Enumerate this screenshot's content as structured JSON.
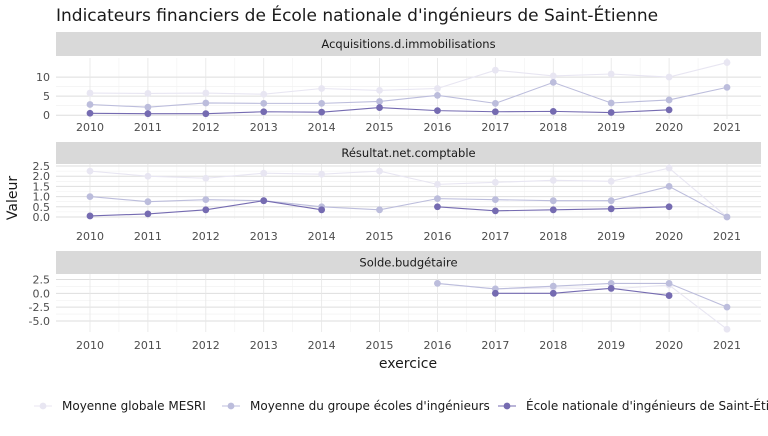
{
  "chart_data": {
    "type": "line",
    "title": "Indicateurs financiers de École nationale d'ingénieurs de Saint-Étienne",
    "xlabel": "exercice",
    "ylabel": "Valeur",
    "x": [
      "2010",
      "2011",
      "2012",
      "2013",
      "2014",
      "2015",
      "2016",
      "2017",
      "2018",
      "2019",
      "2020",
      "2021"
    ],
    "series_names": [
      "Moyenne globale MESRI",
      "Moyenne du groupe écoles d'ingénieurs",
      "École nationale d'ingénieurs de Saint-Étienne"
    ],
    "colors": [
      "#e8e6f2",
      "#bcbddc",
      "#756bb1"
    ],
    "legend_position": "bottom",
    "grid": true,
    "panels": [
      {
        "title": "Acquisitions.d.immobilisations",
        "ylim": [
          -1,
          15
        ],
        "ticks": [
          0,
          5,
          10
        ],
        "tick_labels": [
          "0",
          "5",
          "10"
        ],
        "series": [
          [
            5.8,
            5.7,
            5.8,
            5.5,
            7.0,
            6.5,
            7.0,
            11.8,
            10.3,
            10.8,
            10.0,
            13.8
          ],
          [
            2.8,
            2.1,
            3.2,
            3.1,
            3.1,
            3.6,
            5.2,
            3.1,
            8.6,
            3.2,
            4.0,
            7.3
          ],
          [
            0.5,
            0.4,
            0.4,
            0.9,
            0.8,
            2.0,
            1.2,
            0.9,
            1.0,
            0.7,
            1.4,
            null
          ]
        ]
      },
      {
        "title": "Résultat.net.comptable",
        "ylim": [
          -0.1,
          2.6
        ],
        "ticks": [
          0.0,
          0.5,
          1.0,
          1.5,
          2.0,
          2.5
        ],
        "tick_labels": [
          "0.0",
          "0.5",
          "1.0",
          "1.5",
          "2.0",
          "2.5"
        ],
        "series": [
          [
            2.25,
            2.0,
            1.9,
            2.15,
            2.1,
            2.25,
            1.6,
            1.7,
            1.8,
            1.75,
            2.4,
            0.0
          ],
          [
            1.0,
            0.75,
            0.85,
            0.8,
            0.5,
            0.35,
            0.9,
            0.85,
            0.8,
            0.8,
            1.5,
            0.0
          ],
          [
            0.05,
            0.15,
            0.35,
            0.8,
            0.35,
            null,
            0.5,
            0.3,
            0.35,
            0.4,
            0.5,
            null
          ]
        ]
      },
      {
        "title": "Solde.budgétaire",
        "ylim": [
          -7,
          3.5
        ],
        "ticks": [
          -5.0,
          -2.5,
          0.0,
          2.5
        ],
        "tick_labels": [
          "-5.0",
          "-2.5",
          "0.0",
          "2.5"
        ],
        "series": [
          [
            null,
            null,
            null,
            null,
            null,
            null,
            1.8,
            0.8,
            1.0,
            0.8,
            1.5,
            -6.5
          ],
          [
            null,
            null,
            null,
            null,
            null,
            null,
            1.8,
            0.8,
            1.3,
            1.8,
            1.8,
            -2.5
          ],
          [
            null,
            null,
            null,
            null,
            null,
            null,
            null,
            0.0,
            0.0,
            0.9,
            -0.4,
            null
          ]
        ]
      }
    ]
  }
}
